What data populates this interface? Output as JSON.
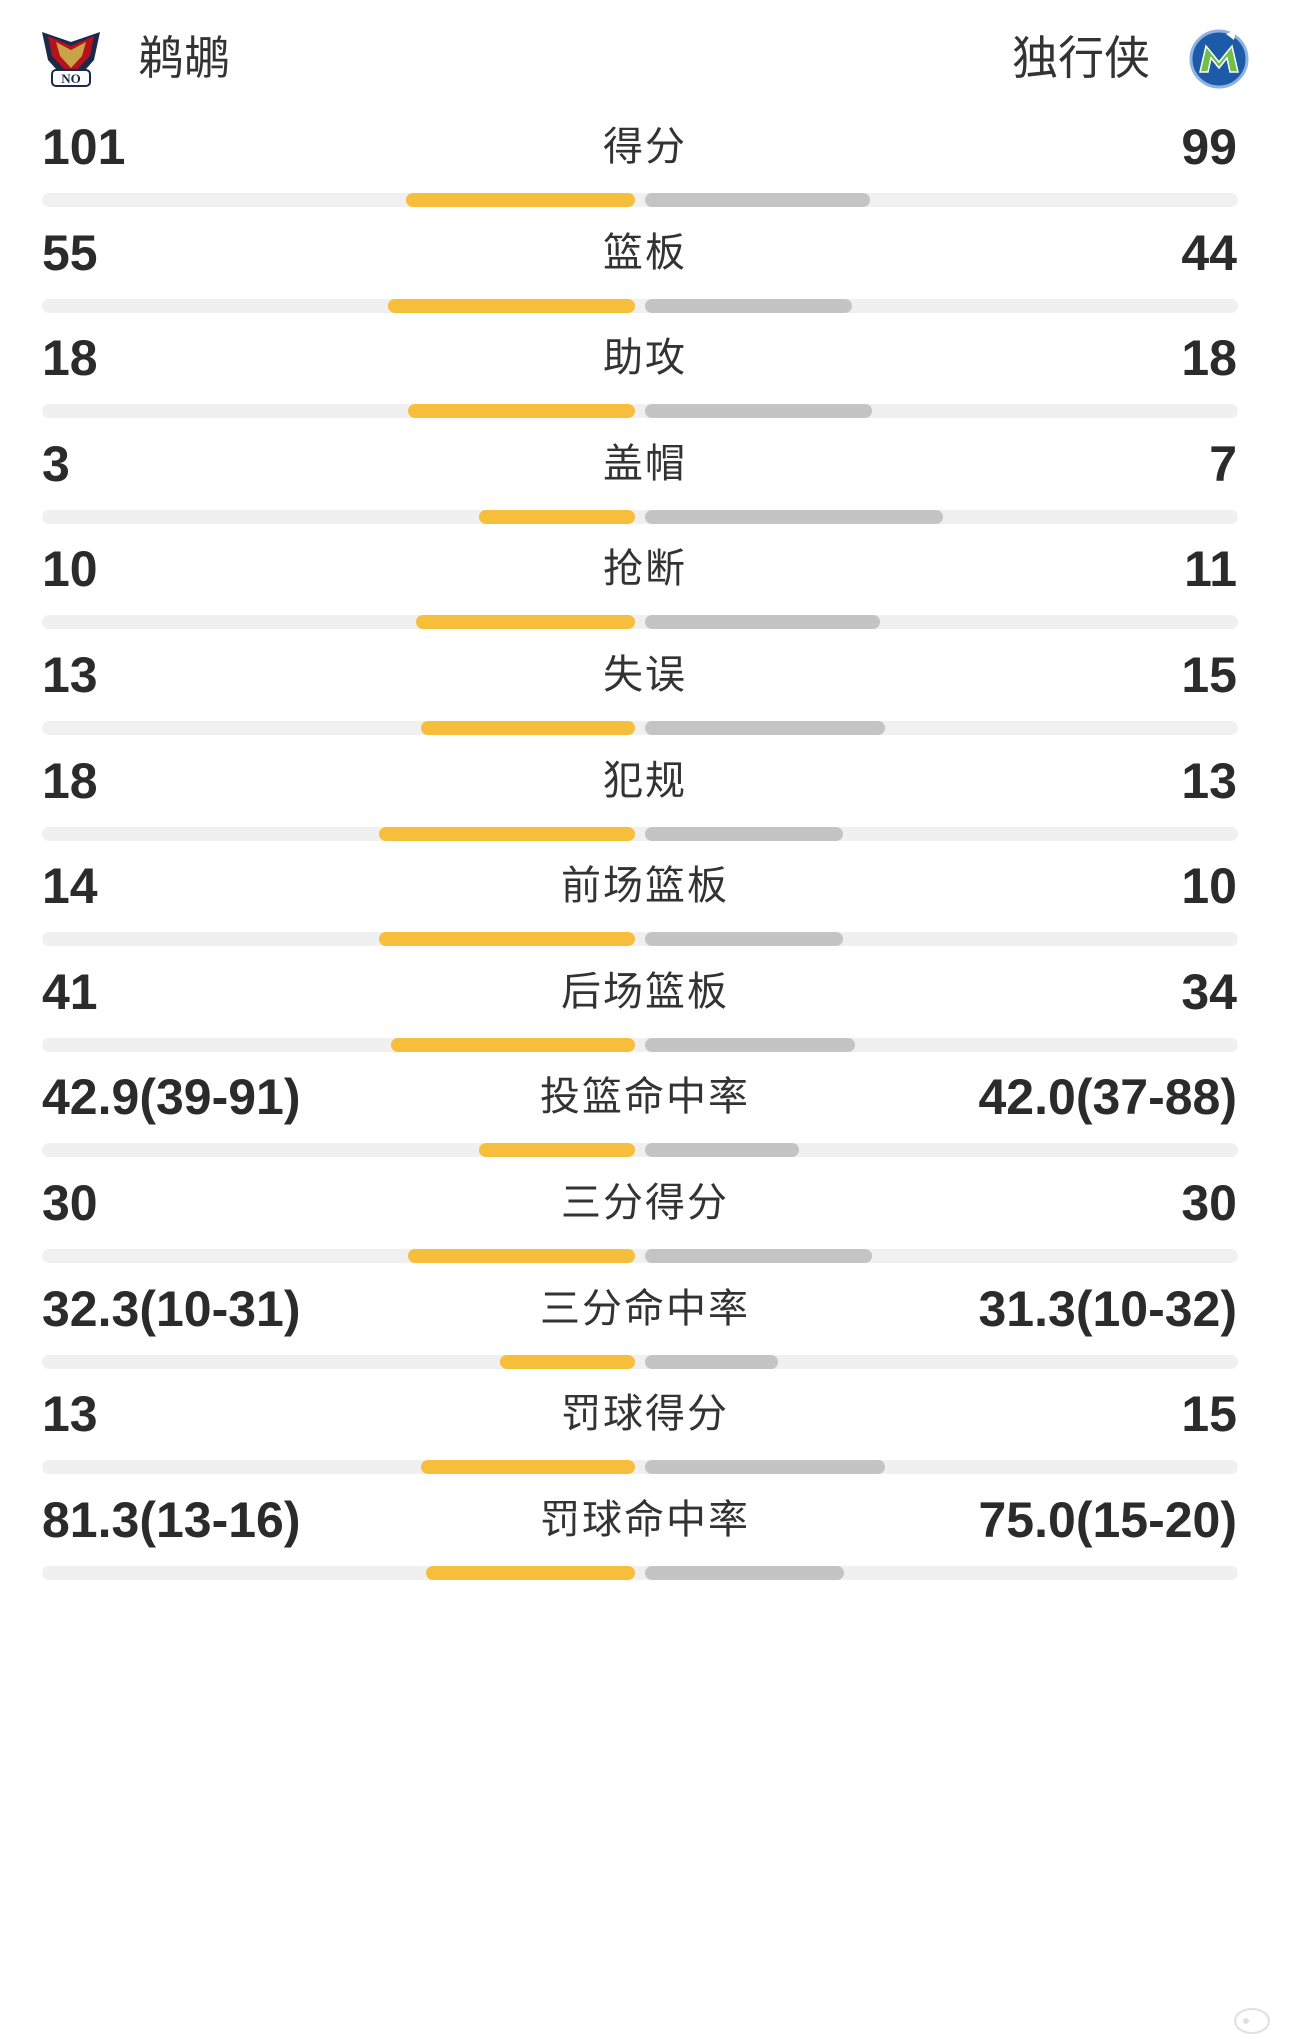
{
  "teams": {
    "home": {
      "name": "鹈鹕",
      "logo_icon": "pelicans-logo",
      "color": "#f7be3c"
    },
    "away": {
      "name": "独行侠",
      "logo_icon": "mavericks-logo",
      "color": "#c4c4c4"
    }
  },
  "stats": [
    {
      "label": "得分",
      "home": "101",
      "away": "99",
      "home_share": 0.505,
      "away_share": 0.495
    },
    {
      "label": "篮板",
      "home": "55",
      "away": "44",
      "home_share": 0.556,
      "away_share": 0.444
    },
    {
      "label": "助攻",
      "home": "18",
      "away": "18",
      "home_share": 0.5,
      "away_share": 0.5
    },
    {
      "label": "盖帽",
      "home": "3",
      "away": "7",
      "home_share": 0.3,
      "away_share": 0.7
    },
    {
      "label": "抢断",
      "home": "10",
      "away": "11",
      "home_share": 0.476,
      "away_share": 0.524
    },
    {
      "label": "失误",
      "home": "13",
      "away": "15",
      "home_share": 0.464,
      "away_share": 0.536
    },
    {
      "label": "犯规",
      "home": "18",
      "away": "13",
      "home_share": 0.581,
      "away_share": 0.419
    },
    {
      "label": "前场篮板",
      "home": "14",
      "away": "10",
      "home_share": 0.583,
      "away_share": 0.417
    },
    {
      "label": "后场篮板",
      "home": "41",
      "away": "34",
      "home_share": 0.547,
      "away_share": 0.453
    },
    {
      "label": "投篮命中率",
      "home": "42.9(39-91)",
      "away": "42.0(37-88)",
      "home_share": 0.3,
      "away_share": 0.295
    },
    {
      "label": "三分得分",
      "home": "30",
      "away": "30",
      "home_share": 0.5,
      "away_share": 0.5
    },
    {
      "label": "三分命中率",
      "home": "32.3(10-31)",
      "away": "31.3(10-32)",
      "home_share": 0.24,
      "away_share": 0.235
    },
    {
      "label": "罚球得分",
      "home": "13",
      "away": "15",
      "home_share": 0.464,
      "away_share": 0.536
    },
    {
      "label": "罚球命中率",
      "home": "81.3(13-16)",
      "away": "75.0(15-20)",
      "home_share": 0.45,
      "away_share": 0.42
    }
  ]
}
